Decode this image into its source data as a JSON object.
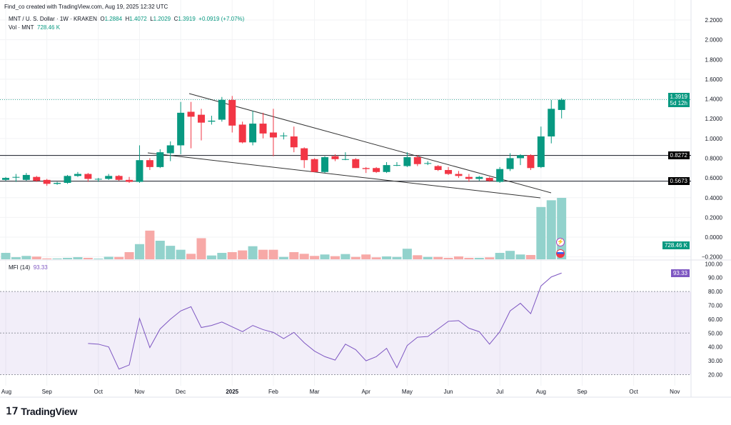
{
  "attribution": "Find_co created with TradingView.com, Aug 19, 2025 12:32 UTC",
  "legend": {
    "symbol": "MNT / U. S. Dollar · 1W · KRAKEN",
    "o_label": "O",
    "o": "1.2884",
    "h_label": "H",
    "h": "1.4072",
    "l_label": "L",
    "l": "1.2029",
    "c_label": "C",
    "c": "1.3919",
    "change": "+0.0919 (+7.07%)",
    "vol_label": "Vol · MNT",
    "vol": "728.46 K"
  },
  "price_axis": [
    "2.2000",
    "2.0000",
    "1.8000",
    "1.6000",
    "1.4000",
    "1.2000",
    "1.0000",
    "0.8000",
    "0.6000",
    "0.4000",
    "0.2000",
    "0.0000",
    "−0.2000"
  ],
  "price_badge": {
    "price": "1.3919",
    "countdown": "5d 12h"
  },
  "levels": [
    "0.8272",
    "0.5673"
  ],
  "volume_badge": "728.46 K",
  "mfi": {
    "label": "MFI (14)",
    "value": "93.33",
    "axis": [
      "100.00",
      "90.00",
      "80.00",
      "70.00",
      "60.00",
      "50.00",
      "40.00",
      "30.00",
      "20.00"
    ]
  },
  "time_axis": [
    "Aug",
    "Sep",
    "Oct",
    "Nov",
    "Dec",
    "2025",
    "Feb",
    "Mar",
    "Apr",
    "May",
    "Jun",
    "Jul",
    "Aug",
    "Sep",
    "Oct",
    "Nov"
  ],
  "colors": {
    "up": "#089981",
    "down": "#f23645",
    "vol_up": "#92d2cc",
    "vol_down": "#f7a9a7",
    "mfi": "#7e57c2"
  },
  "logo": "TradingView",
  "chart_data": {
    "type": "candlestick",
    "candles": [
      [
        0.58,
        0.61,
        0.57,
        0.6
      ],
      [
        0.61,
        0.64,
        0.56,
        0.61
      ],
      [
        0.58,
        0.65,
        0.57,
        0.63
      ],
      [
        0.61,
        0.62,
        0.56,
        0.57
      ],
      [
        0.58,
        0.59,
        0.52,
        0.54
      ],
      [
        0.54,
        0.56,
        0.53,
        0.55
      ],
      [
        0.55,
        0.63,
        0.54,
        0.62
      ],
      [
        0.62,
        0.66,
        0.61,
        0.64
      ],
      [
        0.64,
        0.65,
        0.56,
        0.59
      ],
      [
        0.59,
        0.6,
        0.56,
        0.59
      ],
      [
        0.59,
        0.64,
        0.58,
        0.62
      ],
      [
        0.62,
        0.63,
        0.57,
        0.58
      ],
      [
        0.58,
        0.61,
        0.55,
        0.56
      ],
      [
        0.56,
        0.93,
        0.55,
        0.78
      ],
      [
        0.78,
        0.8,
        0.68,
        0.71
      ],
      [
        0.71,
        0.89,
        0.7,
        0.86
      ],
      [
        0.85,
        0.97,
        0.77,
        0.93
      ],
      [
        0.93,
        1.37,
        0.84,
        1.26
      ],
      [
        1.27,
        1.37,
        0.9,
        1.22
      ],
      [
        1.24,
        1.3,
        0.98,
        1.16
      ],
      [
        1.17,
        1.23,
        1.14,
        1.18
      ],
      [
        1.19,
        1.42,
        1.17,
        1.39
      ],
      [
        1.39,
        1.43,
        1.06,
        1.13
      ],
      [
        1.14,
        1.17,
        0.95,
        0.96
      ],
      [
        0.96,
        1.28,
        0.93,
        1.15
      ],
      [
        1.15,
        1.26,
        1.0,
        1.05
      ],
      [
        1.06,
        1.3,
        0.82,
        1.01
      ],
      [
        1.03,
        1.06,
        0.99,
        1.03
      ],
      [
        1.02,
        1.12,
        0.86,
        0.91
      ],
      [
        0.9,
        0.91,
        0.7,
        0.78
      ],
      [
        0.79,
        0.8,
        0.66,
        0.66
      ],
      [
        0.66,
        0.82,
        0.65,
        0.81
      ],
      [
        0.82,
        0.84,
        0.77,
        0.79
      ],
      [
        0.79,
        0.86,
        0.78,
        0.79
      ],
      [
        0.79,
        0.8,
        0.7,
        0.7
      ],
      [
        0.7,
        0.71,
        0.65,
        0.69
      ],
      [
        0.7,
        0.71,
        0.65,
        0.66
      ],
      [
        0.66,
        0.76,
        0.65,
        0.73
      ],
      [
        0.73,
        0.76,
        0.72,
        0.73
      ],
      [
        0.72,
        0.86,
        0.71,
        0.81
      ],
      [
        0.81,
        0.83,
        0.72,
        0.74
      ],
      [
        0.75,
        0.77,
        0.73,
        0.75
      ],
      [
        0.72,
        0.73,
        0.67,
        0.68
      ],
      [
        0.68,
        0.71,
        0.63,
        0.64
      ],
      [
        0.64,
        0.67,
        0.6,
        0.62
      ],
      [
        0.61,
        0.64,
        0.56,
        0.59
      ],
      [
        0.59,
        0.62,
        0.57,
        0.61
      ],
      [
        0.6,
        0.61,
        0.56,
        0.57
      ],
      [
        0.56,
        0.71,
        0.55,
        0.69
      ],
      [
        0.69,
        0.85,
        0.67,
        0.8
      ],
      [
        0.8,
        0.84,
        0.73,
        0.83
      ],
      [
        0.83,
        0.84,
        0.68,
        0.7
      ],
      [
        0.71,
        1.12,
        0.7,
        1.02
      ],
      [
        1.02,
        1.39,
        0.95,
        1.3
      ],
      [
        1.2884,
        1.4072,
        1.2029,
        1.3919
      ]
    ],
    "volume_k": [
      76,
      25,
      40,
      32,
      10,
      10,
      17,
      25,
      17,
      8,
      30,
      28,
      85,
      180,
      340,
      220,
      160,
      113,
      65,
      250,
      45,
      76,
      85,
      105,
      155,
      113,
      113,
      28,
      85,
      65,
      40,
      57,
      37,
      62,
      28,
      57,
      23,
      34,
      28,
      125,
      48,
      28,
      28,
      17,
      34,
      17,
      17,
      23,
      76,
      100,
      57,
      51,
      620,
      700,
      728.46
    ],
    "mfi": [
      42.5,
      42,
      40,
      24,
      27,
      60.5,
      39.5,
      53,
      60,
      66,
      69,
      54,
      55.5,
      58,
      54.5,
      51,
      55.5,
      52.5,
      50.5,
      46,
      50.5,
      43,
      37,
      33,
      30.5,
      42,
      38,
      30,
      33,
      39,
      25,
      41,
      47,
      47.5,
      53,
      58.5,
      59,
      53.5,
      51,
      42,
      51,
      66,
      71.5,
      64,
      84,
      90.5,
      93.33
    ],
    "mfi_bands": [
      80,
      50,
      20
    ],
    "ylim": [
      -0.2,
      2.2
    ],
    "mfi_ylim": [
      20,
      100
    ]
  }
}
